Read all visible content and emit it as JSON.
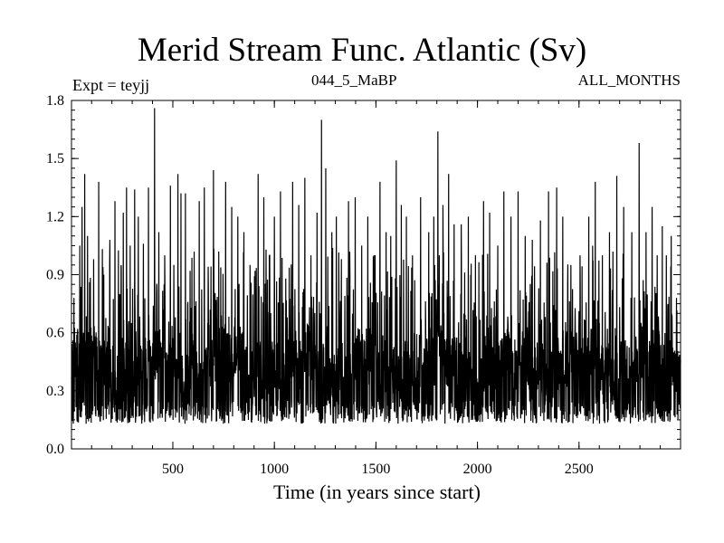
{
  "chart_data": {
    "type": "line",
    "title": "Merid Stream Func. Atlantic (Sv)",
    "annotations": {
      "left": "Expt = teyjj",
      "center": "044_5_MaBP",
      "right": "ALL_MONTHS"
    },
    "xlabel": "Time (in years since start)",
    "ylabel": "",
    "xlim": [
      1,
      3000
    ],
    "ylim": [
      0.0,
      1.8
    ],
    "xticks": [
      500,
      1000,
      1500,
      2000,
      2500
    ],
    "xtick_labels": [
      "500",
      "1000",
      "1500",
      "2000",
      "2500"
    ],
    "yticks": [
      0.0,
      0.3,
      0.6,
      0.9,
      1.2,
      1.5,
      1.8
    ],
    "ytick_labels": [
      "0.0",
      "0.3",
      "0.6",
      "0.9",
      "1.2",
      "1.5",
      "1.8"
    ],
    "grid": false,
    "series": [
      {
        "color": "#000000",
        "points": [
          [
            1,
            0.36
          ],
          [
            12,
            0.3
          ],
          [
            20,
            0.55
          ],
          [
            31,
            0.62
          ],
          [
            42,
            1.05
          ],
          [
            53,
            1.25
          ],
          [
            60,
            0.6
          ],
          [
            66,
            1.42
          ],
          [
            80,
            1.1
          ],
          [
            110,
            0.98
          ],
          [
            135,
            1.38
          ],
          [
            160,
            0.9
          ],
          [
            190,
            1.08
          ],
          [
            215,
            1.28
          ],
          [
            238,
            0.8
          ],
          [
            256,
            1.22
          ],
          [
            272,
            1.35
          ],
          [
            290,
            1.05
          ],
          [
            312,
            1.34
          ],
          [
            330,
            1.2
          ],
          [
            355,
            1.06
          ],
          [
            380,
            1.35
          ],
          [
            410,
            1.76
          ],
          [
            431,
            1.12
          ],
          [
            460,
            1.0
          ],
          [
            488,
            1.36
          ],
          [
            505,
            0.95
          ],
          [
            525,
            1.42
          ],
          [
            540,
            1.32
          ],
          [
            562,
            1.32
          ],
          [
            585,
            0.92
          ],
          [
            605,
            1.02
          ],
          [
            630,
            1.28
          ],
          [
            655,
            1.35
          ],
          [
            700,
            1.44
          ],
          [
            726,
            1.02
          ],
          [
            760,
            1.38
          ],
          [
            790,
            1.25
          ],
          [
            820,
            1.2
          ],
          [
            850,
            1.12
          ],
          [
            880,
            0.95
          ],
          [
            920,
            1.42
          ],
          [
            948,
            1.3
          ],
          [
            975,
            1.0
          ],
          [
            1000,
            1.2
          ],
          [
            1030,
            1.33
          ],
          [
            1056,
            0.88
          ],
          [
            1090,
            1.38
          ],
          [
            1120,
            1.26
          ],
          [
            1150,
            1.4
          ],
          [
            1180,
            1.0
          ],
          [
            1210,
            1.22
          ],
          [
            1232,
            1.7
          ],
          [
            1253,
            1.45
          ],
          [
            1283,
            1.12
          ],
          [
            1305,
            1.2
          ],
          [
            1330,
            0.98
          ],
          [
            1365,
            1.28
          ],
          [
            1398,
            1.3
          ],
          [
            1430,
            1.05
          ],
          [
            1460,
            1.2
          ],
          [
            1490,
            1.0
          ],
          [
            1520,
            1.38
          ],
          [
            1550,
            1.12
          ],
          [
            1573,
            1.1
          ],
          [
            1600,
            1.49
          ],
          [
            1625,
            1.26
          ],
          [
            1650,
            1.2
          ],
          [
            1680,
            1.0
          ],
          [
            1720,
            1.3
          ],
          [
            1760,
            1.12
          ],
          [
            1785,
            1.2
          ],
          [
            1805,
            1.64
          ],
          [
            1830,
            1.26
          ],
          [
            1858,
            1.42
          ],
          [
            1885,
            1.16
          ],
          [
            1920,
            1.16
          ],
          [
            1955,
            1.2
          ],
          [
            1990,
            1.0
          ],
          [
            2030,
            1.28
          ],
          [
            2060,
            1.22
          ],
          [
            2100,
            1.05
          ],
          [
            2130,
            1.33
          ],
          [
            2165,
            1.2
          ],
          [
            2200,
            1.33
          ],
          [
            2235,
            1.1
          ],
          [
            2270,
            1.08
          ],
          [
            2310,
            1.18
          ],
          [
            2350,
            1.33
          ],
          [
            2390,
            1.35
          ],
          [
            2420,
            1.2
          ],
          [
            2460,
            0.95
          ],
          [
            2505,
            1.0
          ],
          [
            2548,
            1.2
          ],
          [
            2580,
            1.38
          ],
          [
            2615,
            1.0
          ],
          [
            2650,
            1.12
          ],
          [
            2686,
            1.41
          ],
          [
            2720,
            1.25
          ],
          [
            2760,
            1.12
          ],
          [
            2796,
            1.58
          ],
          [
            2830,
            1.12
          ],
          [
            2860,
            1.25
          ],
          [
            2885,
            1.0
          ],
          [
            2910,
            1.15
          ],
          [
            2930,
            1.0
          ],
          [
            2954,
            1.1
          ],
          [
            2980,
            0.78
          ],
          [
            3000,
            0.46
          ]
        ]
      }
    ]
  }
}
